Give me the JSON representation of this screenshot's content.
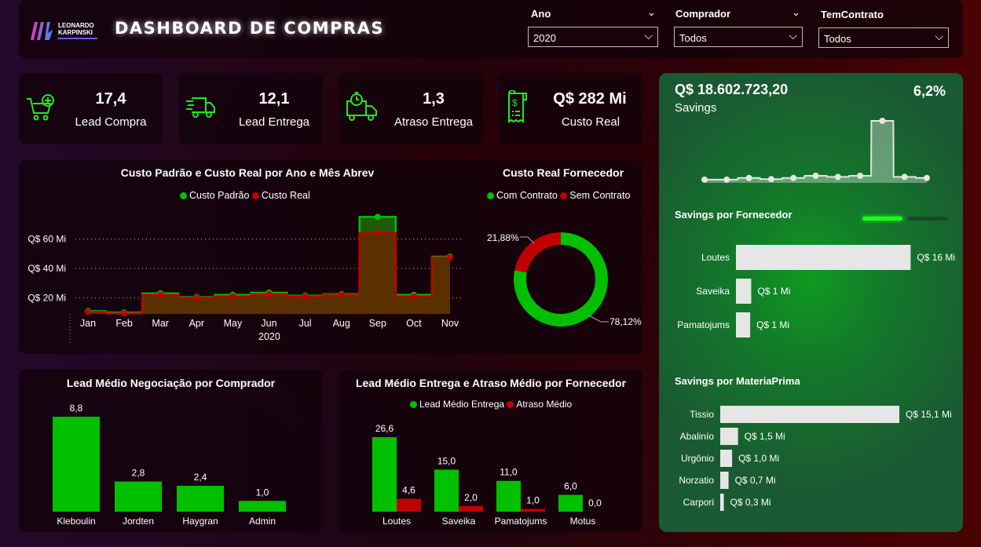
{
  "header": {
    "logo_text": "LEONARDO KARPINSKI",
    "title": "DASHBOARD DE COMPRAS"
  },
  "filters": [
    {
      "label": "Ano",
      "value": "2020"
    },
    {
      "label": "Comprador",
      "value": "Todos"
    },
    {
      "label": "TemContrato",
      "value": "Todos"
    }
  ],
  "kpis": [
    {
      "value": "17,4",
      "label": "Lead Compra",
      "icon": "cart-plus-icon"
    },
    {
      "value": "12,1",
      "label": "Lead Entrega",
      "icon": "fast-truck-icon"
    },
    {
      "value": "1,3",
      "label": "Atraso Entrega",
      "icon": "truck-clock-icon"
    },
    {
      "value": "Q$ 282 Mi",
      "label": "Custo Real",
      "icon": "receipt-dollar-icon"
    }
  ],
  "colors": {
    "green": "#00c000",
    "red": "#c00000",
    "savings_bg": "#1a5a32"
  },
  "chart_data": [
    {
      "type": "line",
      "title": "Custo Padrão e Custo Real por Ano e Mês Abrev",
      "step": true,
      "categories": [
        "Jan",
        "Feb",
        "Mar",
        "Apr",
        "May",
        "Jun",
        "Jul",
        "Aug",
        "Sep",
        "Oct",
        "Nov"
      ],
      "xlabel": "2020",
      "yticks": [
        "Q$ 20 Mi",
        "Q$ 40 Mi",
        "Q$ 60 Mi"
      ],
      "ytick_values": [
        20,
        40,
        60
      ],
      "grid": true,
      "legend": "top",
      "series": [
        {
          "name": "Custo Padrão",
          "color": "#00c000",
          "values": [
            11,
            10,
            23,
            20.5,
            22,
            23.5,
            21.5,
            22.5,
            75,
            22,
            48
          ]
        },
        {
          "name": "Custo Real",
          "color": "#c00000",
          "values": [
            10.5,
            9.5,
            22,
            20,
            21,
            22.5,
            21,
            22,
            64,
            21,
            47.5
          ]
        }
      ]
    },
    {
      "type": "pie",
      "donut": true,
      "title": "Custo Real Fornecedor",
      "legend": "top",
      "slices": [
        {
          "name": "Com Contrato",
          "value": 78.12,
          "label": "78,12%",
          "color": "#00c000"
        },
        {
          "name": "Sem Contrato",
          "value": 21.88,
          "label": "21,88%",
          "color": "#c00000"
        }
      ]
    },
    {
      "type": "bar",
      "title": "Lead Médio Negociação por Comprador",
      "categories": [
        "Kleboulin",
        "Jordten",
        "Haygran",
        "Admin"
      ],
      "values": [
        8.8,
        2.8,
        2.4,
        1.0
      ],
      "labels": [
        "8,8",
        "2,8",
        "2,4",
        "1,0"
      ]
    },
    {
      "type": "bar",
      "title": "Lead Médio Entrega e Atraso Médio por Fornecedor",
      "legend": "top",
      "categories": [
        "Loutes",
        "Saveika",
        "Pamatojums",
        "Motus"
      ],
      "series": [
        {
          "name": "Lead Médio Entrega",
          "color": "#00c000",
          "values": [
            26.6,
            15.0,
            11.0,
            6.0
          ],
          "labels": [
            "26,6",
            "15,0",
            "11,0",
            "6,0"
          ]
        },
        {
          "name": "Atraso Médio",
          "color": "#c00000",
          "values": [
            4.6,
            2.0,
            1.0,
            0.0
          ],
          "labels": [
            "4,6",
            "2,0",
            "1,0",
            "0,0"
          ]
        }
      ]
    },
    {
      "type": "line",
      "title": "",
      "step": true,
      "values": [
        0.3,
        0.3,
        0.6,
        0.4,
        0.6,
        1.0,
        0.8,
        1.0,
        11.0,
        0.8,
        0.6
      ]
    },
    {
      "type": "bar",
      "orientation": "horizontal",
      "title": "Savings por Fornecedor",
      "categories": [
        "Loutes",
        "Saveika",
        "Pamatojums"
      ],
      "values": [
        16,
        1.4,
        1.3
      ],
      "labels": [
        "Q$ 16 Mi",
        "Q$ 1 Mi",
        "Q$ 1 Mi"
      ]
    },
    {
      "type": "bar",
      "orientation": "horizontal",
      "title": "Savings por MateriaPrima",
      "categories": [
        "Tissio",
        "Abalinío",
        "Urgônio",
        "Norzatio",
        "Carpori"
      ],
      "values": [
        15.1,
        1.5,
        1.0,
        0.7,
        0.3
      ],
      "labels": [
        "Q$ 15,1 Mi",
        "Q$ 1,5 Mi",
        "Q$ 1,0 Mi",
        "Q$ 0,7 Mi",
        "Q$ 0,3 Mi"
      ]
    }
  ],
  "savings": {
    "value": "Q$ 18.602.723,20",
    "label": "Savings",
    "percent": "6,2%"
  }
}
